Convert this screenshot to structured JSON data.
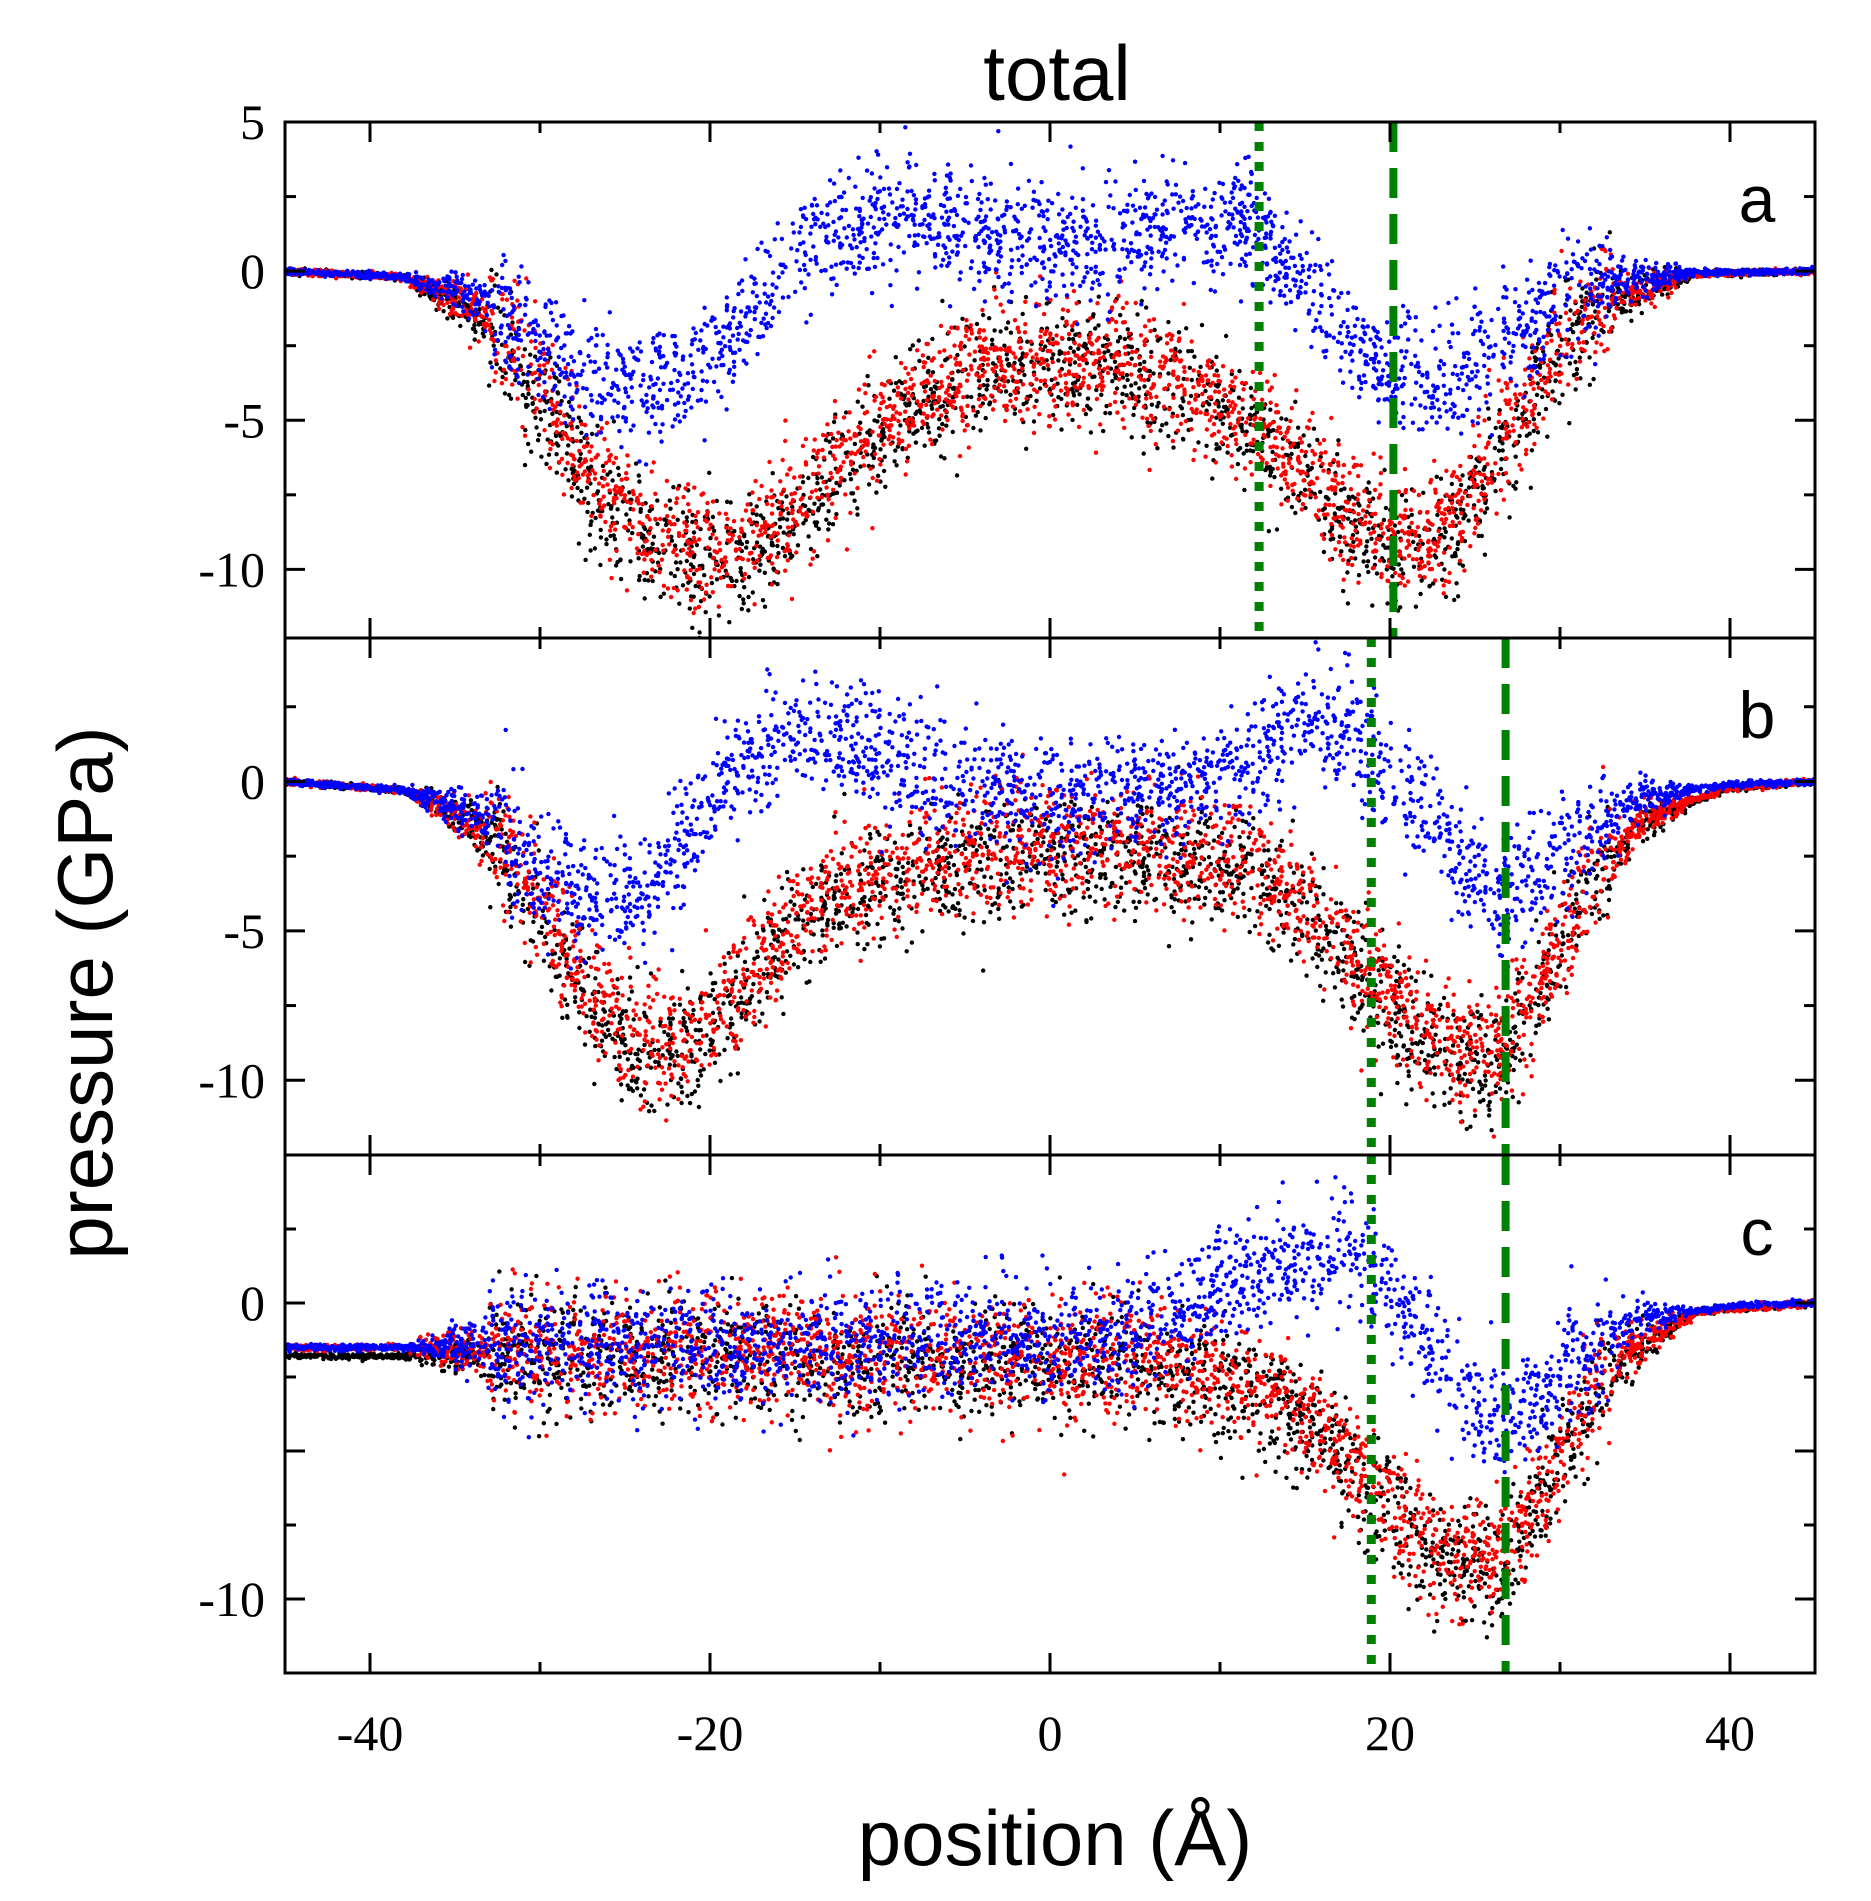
{
  "chart_data": {
    "type": "scatter",
    "title": "total",
    "xlabel": "position (Å)",
    "ylabel": "pressure (GPa)",
    "xlim": [
      -45,
      45
    ],
    "x_ticks": [
      -40,
      -20,
      0,
      20,
      40
    ],
    "x_tick_labels": [
      "-40",
      "-20",
      "0",
      "20",
      "40"
    ],
    "series_colors": {
      "black": "#000000",
      "red": "#ff0000",
      "blue": "#0000ff",
      "guide": "#008000"
    },
    "series": [
      {
        "name": "black",
        "color": "#000000"
      },
      {
        "name": "red",
        "color": "#ff0000"
      },
      {
        "name": "blue",
        "color": "#0000ff"
      }
    ],
    "panels": [
      {
        "label": "a",
        "ylim": [
          -12.3,
          5
        ],
        "y_ticks": [
          5,
          0,
          -5,
          -10
        ],
        "y_tick_labels": [
          "5",
          "0",
          "-5",
          "-10"
        ],
        "dotted_line_x": 12.3,
        "dashed_line_x": 20.2,
        "profiles": {
          "red": [
            [
              -45,
              0
            ],
            [
              -38,
              -0.2
            ],
            [
              -33,
              -1.5
            ],
            [
              -30,
              -3.8
            ],
            [
              -27,
              -6.8
            ],
            [
              -24,
              -8.6
            ],
            [
              -21,
              -9.3
            ],
            [
              -18,
              -9.2
            ],
            [
              -15,
              -8
            ],
            [
              -12,
              -6
            ],
            [
              -8,
              -4.2
            ],
            [
              -4,
              -3.1
            ],
            [
              0,
              -2.9
            ],
            [
              4,
              -3.1
            ],
            [
              8,
              -3.8
            ],
            [
              12,
              -5
            ],
            [
              15,
              -6.5
            ],
            [
              18,
              -8.3
            ],
            [
              20,
              -9.1
            ],
            [
              22,
              -9
            ],
            [
              24,
              -8
            ],
            [
              27,
              -5.3
            ],
            [
              30,
              -2.5
            ],
            [
              33,
              -0.9
            ],
            [
              38,
              -0.1
            ],
            [
              45,
              0
            ]
          ],
          "black": [
            [
              -45,
              0
            ],
            [
              -38,
              -0.2
            ],
            [
              -33,
              -1.7
            ],
            [
              -30,
              -4.2
            ],
            [
              -27,
              -7.2
            ],
            [
              -24,
              -8.9
            ],
            [
              -21,
              -9.6
            ],
            [
              -18,
              -9.5
            ],
            [
              -15,
              -8.3
            ],
            [
              -12,
              -6.3
            ],
            [
              -8,
              -4.5
            ],
            [
              -4,
              -3.4
            ],
            [
              0,
              -3.2
            ],
            [
              4,
              -3.4
            ],
            [
              8,
              -4.1
            ],
            [
              12,
              -5.3
            ],
            [
              15,
              -6.8
            ],
            [
              18,
              -8.6
            ],
            [
              20,
              -9.4
            ],
            [
              22,
              -9.3
            ],
            [
              24,
              -8.3
            ],
            [
              27,
              -5.6
            ],
            [
              30,
              -2.7
            ],
            [
              33,
              -1
            ],
            [
              38,
              -0.1
            ],
            [
              45,
              0
            ]
          ],
          "blue": [
            [
              -45,
              0
            ],
            [
              -38,
              -0.2
            ],
            [
              -33,
              -1
            ],
            [
              -30,
              -2.4
            ],
            [
              -27,
              -3.6
            ],
            [
              -24,
              -4
            ],
            [
              -21,
              -3.2
            ],
            [
              -18,
              -1.8
            ],
            [
              -15,
              0.2
            ],
            [
              -12,
              1.6
            ],
            [
              -8,
              1.7
            ],
            [
              -4,
              1.2
            ],
            [
              0,
              1
            ],
            [
              4,
              1.1
            ],
            [
              8,
              1.6
            ],
            [
              12,
              1.5
            ],
            [
              15,
              -0.5
            ],
            [
              18,
              -2.5
            ],
            [
              20,
              -3.5
            ],
            [
              22,
              -3.8
            ],
            [
              24,
              -3.6
            ],
            [
              27,
              -2
            ],
            [
              30,
              -0.8
            ],
            [
              33,
              -0.3
            ],
            [
              38,
              -0.05
            ],
            [
              45,
              0
            ]
          ]
        }
      },
      {
        "label": "b",
        "ylim": [
          -12.5,
          4.8
        ],
        "y_ticks": [
          0,
          -5,
          -10
        ],
        "y_tick_labels": [
          "0",
          "-5",
          "-10"
        ],
        "dotted_line_x": 18.9,
        "dashed_line_x": 26.8,
        "profiles": {
          "red": [
            [
              -45,
              0
            ],
            [
              -38,
              -0.3
            ],
            [
              -33,
              -1.6
            ],
            [
              -30,
              -4
            ],
            [
              -27,
              -7.2
            ],
            [
              -24,
              -8.9
            ],
            [
              -21,
              -8.6
            ],
            [
              -18,
              -6.8
            ],
            [
              -15,
              -4.6
            ],
            [
              -12,
              -3.2
            ],
            [
              -8,
              -2.5
            ],
            [
              -4,
              -2.2
            ],
            [
              0,
              -2
            ],
            [
              4,
              -2
            ],
            [
              8,
              -2.2
            ],
            [
              12,
              -2.8
            ],
            [
              15,
              -4
            ],
            [
              18,
              -5.8
            ],
            [
              21,
              -7.8
            ],
            [
              24,
              -9
            ],
            [
              26.5,
              -9.2
            ],
            [
              29,
              -6.5
            ],
            [
              32,
              -3.2
            ],
            [
              35,
              -1.2
            ],
            [
              40,
              -0.2
            ],
            [
              45,
              0
            ]
          ],
          "black": [
            [
              -45,
              0
            ],
            [
              -38,
              -0.3
            ],
            [
              -33,
              -1.8
            ],
            [
              -30,
              -4.4
            ],
            [
              -27,
              -7.6
            ],
            [
              -24,
              -9.3
            ],
            [
              -21,
              -9
            ],
            [
              -18,
              -7.2
            ],
            [
              -15,
              -5
            ],
            [
              -12,
              -3.7
            ],
            [
              -8,
              -3
            ],
            [
              -4,
              -2.7
            ],
            [
              0,
              -2.5
            ],
            [
              4,
              -2.5
            ],
            [
              8,
              -2.7
            ],
            [
              12,
              -3.2
            ],
            [
              15,
              -4.4
            ],
            [
              18,
              -6.2
            ],
            [
              21,
              -8.2
            ],
            [
              24,
              -9.4
            ],
            [
              26.5,
              -9.6
            ],
            [
              29,
              -6.8
            ],
            [
              32,
              -3.4
            ],
            [
              35,
              -1.3
            ],
            [
              40,
              -0.2
            ],
            [
              45,
              0
            ]
          ],
          "blue": [
            [
              -45,
              0
            ],
            [
              -38,
              -0.3
            ],
            [
              -33,
              -1.2
            ],
            [
              -30,
              -2.8
            ],
            [
              -27,
              -4
            ],
            [
              -24,
              -3.6
            ],
            [
              -21,
              -1.6
            ],
            [
              -18,
              0.6
            ],
            [
              -15,
              1.8
            ],
            [
              -12,
              1.4
            ],
            [
              -8,
              0.2
            ],
            [
              -4,
              -0.3
            ],
            [
              0,
              -0.5
            ],
            [
              4,
              -0.4
            ],
            [
              8,
              -0.2
            ],
            [
              12,
              0.9
            ],
            [
              15,
              1.8
            ],
            [
              18,
              1.6
            ],
            [
              21,
              -0.5
            ],
            [
              24,
              -2.8
            ],
            [
              26.5,
              -4
            ],
            [
              29,
              -3
            ],
            [
              32,
              -1.4
            ],
            [
              35,
              -0.5
            ],
            [
              40,
              -0.1
            ],
            [
              45,
              0
            ]
          ]
        }
      },
      {
        "label": "c",
        "ylim": [
          -12.5,
          5
        ],
        "y_ticks": [
          0,
          -10
        ],
        "y_tick_labels": [
          "0",
          "-10"
        ],
        "dotted_line_x": 18.9,
        "dashed_line_x": 26.8,
        "profiles": {
          "red": [
            [
              -45,
              -1.5
            ],
            [
              -30,
              -1.5
            ],
            [
              -15,
              -1.7
            ],
            [
              -5,
              -1.8
            ],
            [
              5,
              -1.8
            ],
            [
              10,
              -2.3
            ],
            [
              14,
              -3.3
            ],
            [
              17,
              -4.8
            ],
            [
              20,
              -6.7
            ],
            [
              23,
              -8.4
            ],
            [
              26,
              -8.8
            ],
            [
              28,
              -7.2
            ],
            [
              31,
              -4
            ],
            [
              34,
              -1.6
            ],
            [
              38,
              -0.3
            ],
            [
              45,
              0
            ]
          ],
          "black": [
            [
              -45,
              -1.8
            ],
            [
              -30,
              -1.8
            ],
            [
              -15,
              -2
            ],
            [
              -5,
              -2.1
            ],
            [
              5,
              -2.1
            ],
            [
              10,
              -2.6
            ],
            [
              14,
              -3.6
            ],
            [
              17,
              -5.1
            ],
            [
              20,
              -7
            ],
            [
              23,
              -8.7
            ],
            [
              26,
              -9.1
            ],
            [
              28,
              -7.5
            ],
            [
              31,
              -4.2
            ],
            [
              34,
              -1.7
            ],
            [
              38,
              -0.3
            ],
            [
              45,
              0
            ]
          ],
          "blue": [
            [
              -45,
              -1.5
            ],
            [
              -30,
              -1.5
            ],
            [
              -15,
              -1.5
            ],
            [
              -5,
              -1.3
            ],
            [
              5,
              -1
            ],
            [
              10,
              0.5
            ],
            [
              14,
              1.4
            ],
            [
              17,
              1.6
            ],
            [
              19,
              1.2
            ],
            [
              21,
              -0.4
            ],
            [
              24,
              -2.8
            ],
            [
              26.5,
              -4
            ],
            [
              29,
              -3.2
            ],
            [
              32,
              -1.5
            ],
            [
              35,
              -0.5
            ],
            [
              40,
              -0.1
            ],
            [
              45,
              0
            ]
          ]
        }
      }
    ]
  }
}
